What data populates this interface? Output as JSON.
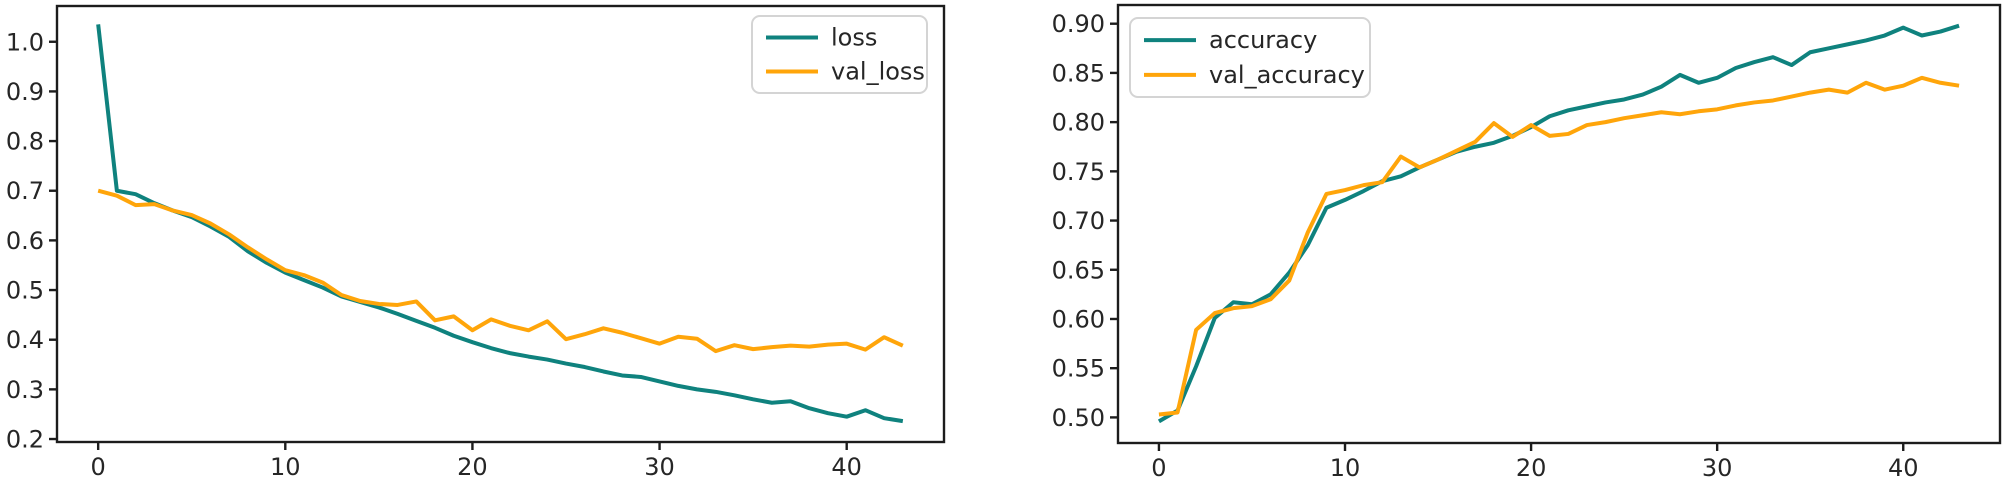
{
  "page": {
    "background": "#ffffff",
    "colors": {
      "axis": "#1c1c1c",
      "text": "#262626",
      "legend_border": "#d4d4d4",
      "legend_background": "rgba(255,255,255,0.85)",
      "teal": "#0f827e",
      "orange": "#ffa50a"
    }
  },
  "chart_data": [
    {
      "id": "loss",
      "type": "line",
      "title": "",
      "xlabel": "",
      "ylabel": "",
      "grid": false,
      "legend_position": "upper-right",
      "xlim": [
        -2.2,
        45.2
      ],
      "ylim": [
        0.194,
        1.072
      ],
      "xticks": [
        0,
        10,
        20,
        30,
        40
      ],
      "xtick_labels": [
        "0",
        "10",
        "20",
        "30",
        "40"
      ],
      "yticks": [
        0.2,
        0.3,
        0.4,
        0.5,
        0.6,
        0.7,
        0.8,
        0.9,
        1.0
      ],
      "ytick_labels": [
        "0.2",
        "0.3",
        "0.4",
        "0.5",
        "0.6",
        "0.7",
        "0.8",
        "0.9",
        "1.0"
      ],
      "x": [
        0,
        1,
        2,
        3,
        4,
        5,
        6,
        7,
        8,
        9,
        10,
        11,
        12,
        13,
        14,
        15,
        16,
        17,
        18,
        19,
        20,
        21,
        22,
        23,
        24,
        25,
        26,
        27,
        28,
        29,
        30,
        31,
        32,
        33,
        34,
        35,
        36,
        37,
        38,
        39,
        40,
        41,
        42,
        43
      ],
      "series": [
        {
          "name": "loss",
          "color": "#0f827e",
          "values": [
            1.035,
            0.7,
            0.693,
            0.675,
            0.66,
            0.647,
            0.628,
            0.607,
            0.578,
            0.555,
            0.535,
            0.52,
            0.505,
            0.487,
            0.476,
            0.465,
            0.452,
            0.438,
            0.424,
            0.408,
            0.395,
            0.383,
            0.373,
            0.366,
            0.36,
            0.352,
            0.345,
            0.336,
            0.328,
            0.325,
            0.316,
            0.307,
            0.3,
            0.295,
            0.288,
            0.28,
            0.273,
            0.276,
            0.262,
            0.252,
            0.245,
            0.258,
            0.242,
            0.236
          ]
        },
        {
          "name": "val_loss",
          "color": "#ffa50a",
          "values": [
            0.7,
            0.69,
            0.671,
            0.673,
            0.66,
            0.651,
            0.634,
            0.612,
            0.586,
            0.562,
            0.54,
            0.53,
            0.515,
            0.49,
            0.478,
            0.472,
            0.47,
            0.477,
            0.439,
            0.447,
            0.419,
            0.441,
            0.428,
            0.419,
            0.437,
            0.401,
            0.411,
            0.423,
            0.414,
            0.403,
            0.392,
            0.406,
            0.402,
            0.377,
            0.389,
            0.381,
            0.385,
            0.388,
            0.386,
            0.39,
            0.392,
            0.38,
            0.405,
            0.388
          ]
        }
      ]
    },
    {
      "id": "accuracy",
      "type": "line",
      "title": "",
      "xlabel": "",
      "ylabel": "",
      "grid": false,
      "legend_position": "upper-left",
      "xlim": [
        -2.2,
        45.2
      ],
      "ylim": [
        0.474,
        0.919
      ],
      "xticks": [
        0,
        10,
        20,
        30,
        40
      ],
      "xtick_labels": [
        "0",
        "10",
        "20",
        "30",
        "40"
      ],
      "yticks": [
        0.5,
        0.55,
        0.6,
        0.65,
        0.7,
        0.75,
        0.8,
        0.85,
        0.9
      ],
      "ytick_labels": [
        "0.50",
        "0.55",
        "0.60",
        "0.65",
        "0.70",
        "0.75",
        "0.80",
        "0.85",
        "0.90"
      ],
      "x": [
        0,
        1,
        2,
        3,
        4,
        5,
        6,
        7,
        8,
        9,
        10,
        11,
        12,
        13,
        14,
        15,
        16,
        17,
        18,
        19,
        20,
        21,
        22,
        23,
        24,
        25,
        26,
        27,
        28,
        29,
        30,
        31,
        32,
        33,
        34,
        35,
        36,
        37,
        38,
        39,
        40,
        41,
        42,
        43
      ],
      "series": [
        {
          "name": "accuracy",
          "color": "#0f827e",
          "values": [
            0.496,
            0.507,
            0.552,
            0.601,
            0.617,
            0.615,
            0.625,
            0.647,
            0.675,
            0.713,
            0.721,
            0.73,
            0.74,
            0.745,
            0.754,
            0.762,
            0.77,
            0.775,
            0.779,
            0.786,
            0.795,
            0.806,
            0.812,
            0.816,
            0.82,
            0.823,
            0.828,
            0.836,
            0.848,
            0.84,
            0.845,
            0.855,
            0.861,
            0.866,
            0.858,
            0.871,
            0.875,
            0.879,
            0.883,
            0.888,
            0.896,
            0.888,
            0.892,
            0.898
          ]
        },
        {
          "name": "val_accuracy",
          "color": "#ffa50a",
          "values": [
            0.503,
            0.505,
            0.589,
            0.606,
            0.611,
            0.613,
            0.62,
            0.639,
            0.688,
            0.727,
            0.731,
            0.736,
            0.739,
            0.765,
            0.754,
            0.762,
            0.771,
            0.78,
            0.799,
            0.785,
            0.797,
            0.786,
            0.788,
            0.797,
            0.8,
            0.804,
            0.807,
            0.81,
            0.808,
            0.811,
            0.813,
            0.817,
            0.82,
            0.822,
            0.826,
            0.83,
            0.833,
            0.83,
            0.84,
            0.833,
            0.837,
            0.845,
            0.84,
            0.837
          ]
        }
      ]
    }
  ]
}
